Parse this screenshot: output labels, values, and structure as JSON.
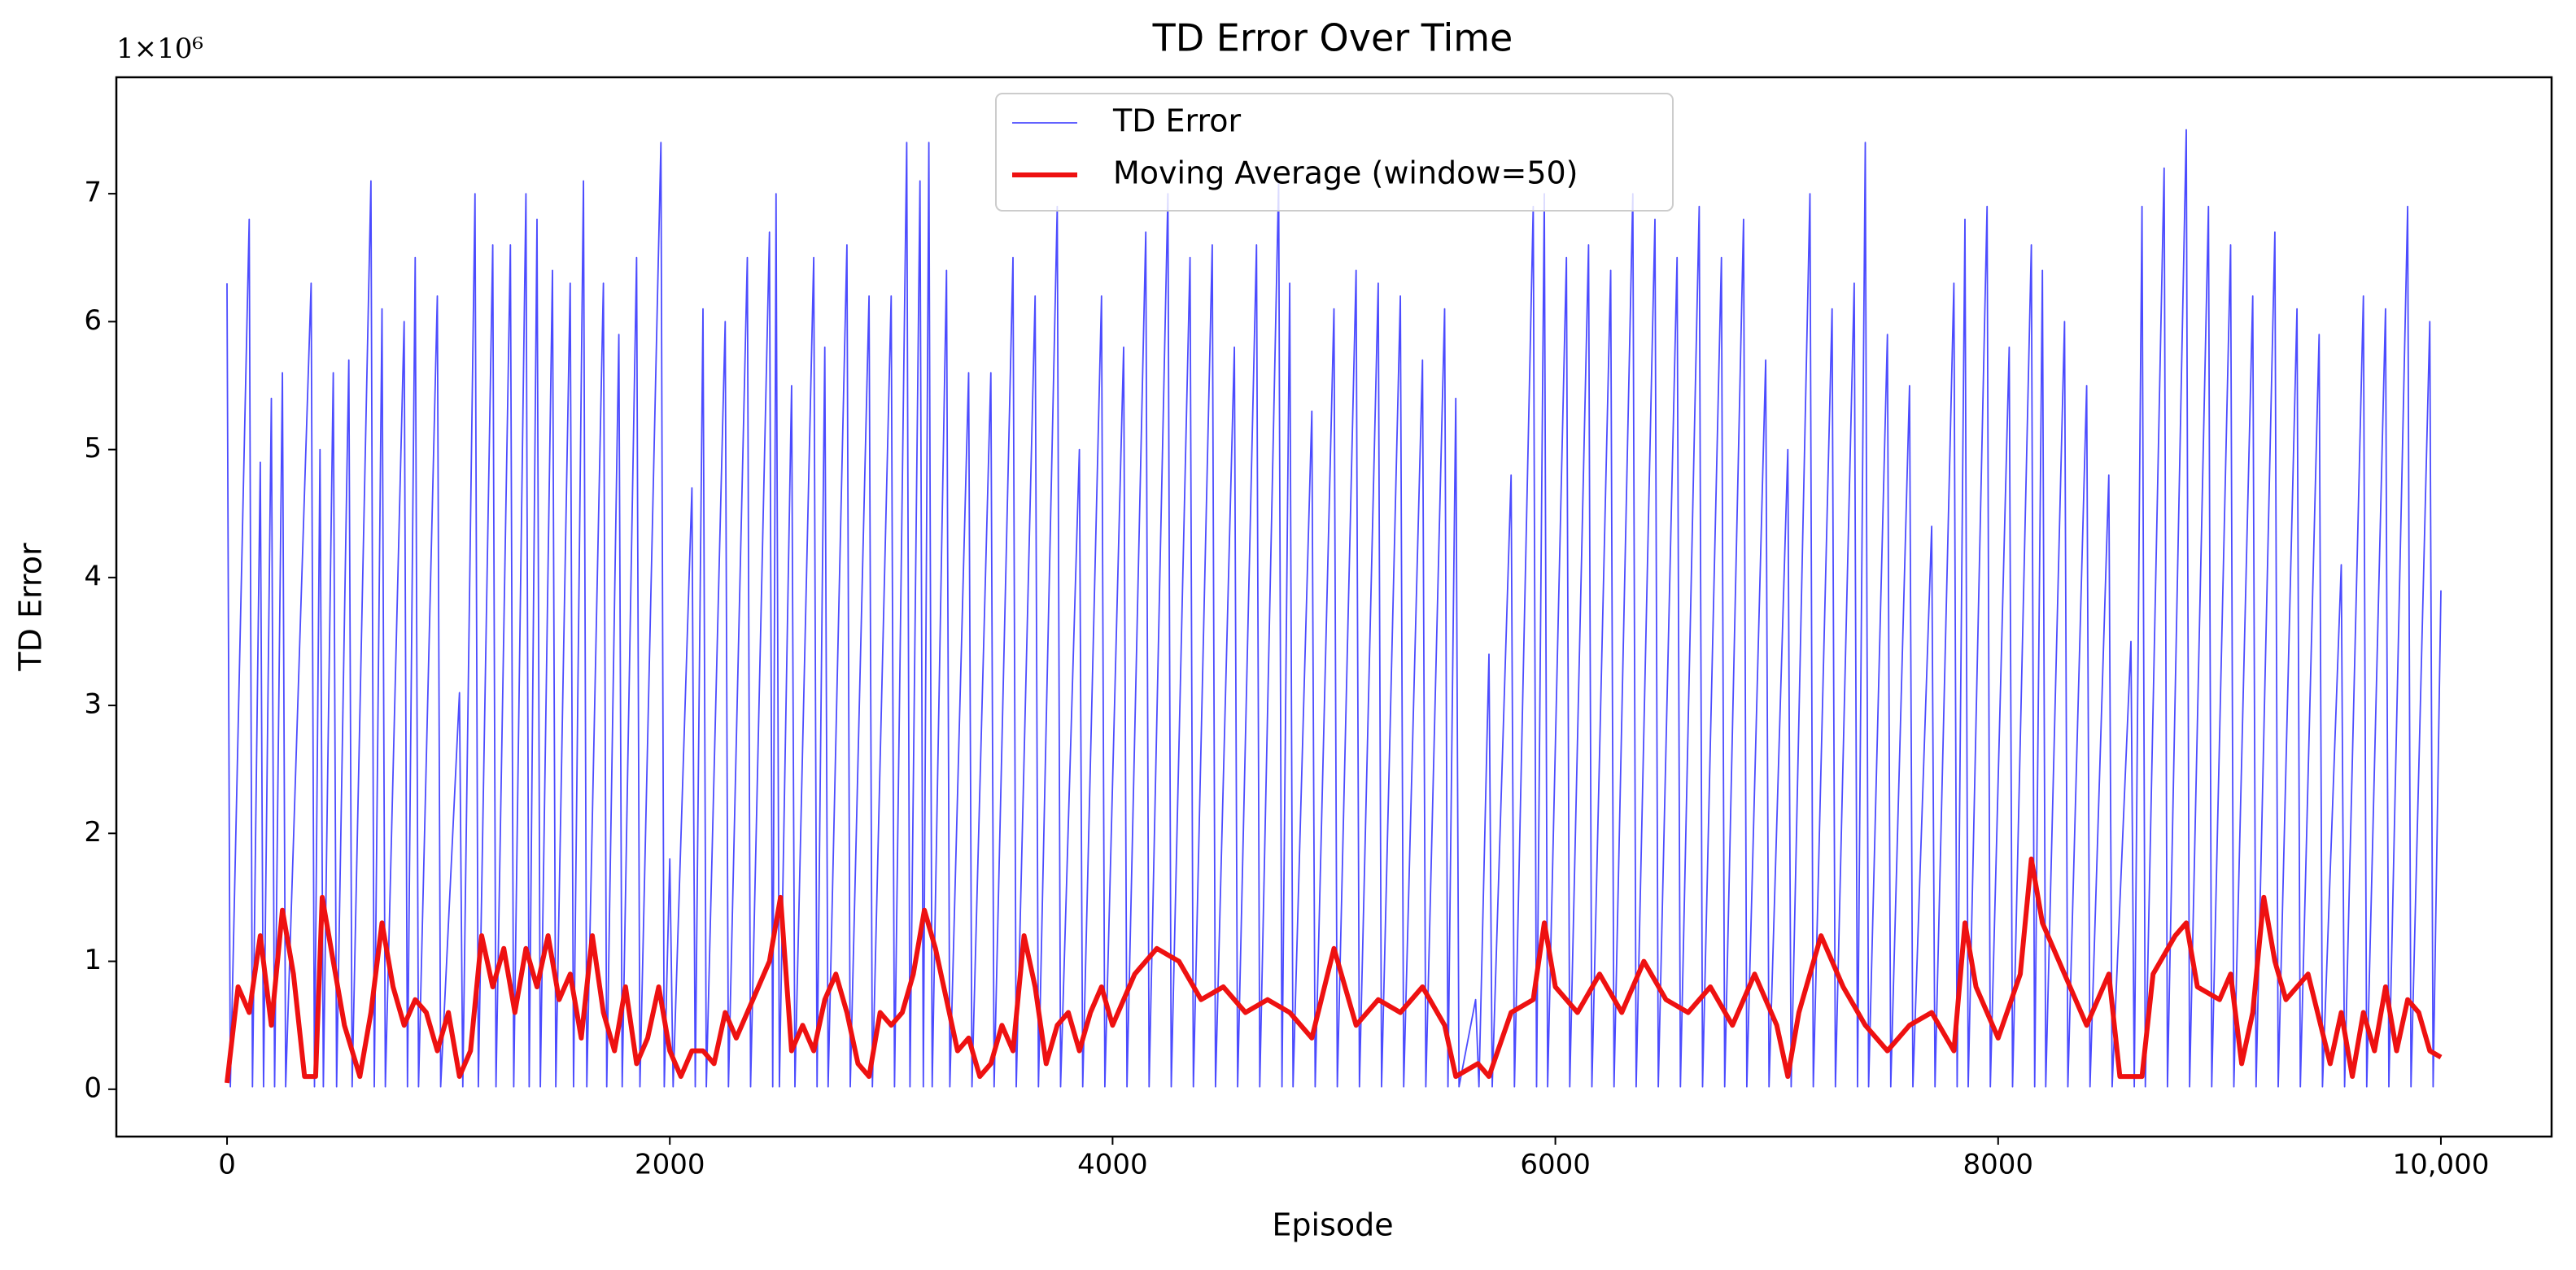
{
  "chart_data": {
    "type": "line",
    "title": "TD Error Over Time",
    "xlabel": "Episode",
    "ylabel": "TD Error",
    "y_offset_label": "1×10⁶",
    "xlim": [
      -500,
      10500
    ],
    "ylim": [
      -0.37,
      7.91
    ],
    "xticks": [
      0,
      2000,
      4000,
      6000,
      8000,
      {
        "value": 10000,
        "label": "10,000"
      }
    ],
    "yticks": [
      0,
      1,
      2,
      3,
      4,
      5,
      6,
      7
    ],
    "legend": "upper center",
    "series": [
      {
        "name": "TD Error",
        "color": "#4b4bff",
        "width": 1.5,
        "x": [
          0,
          15,
          100,
          115,
          150,
          165,
          200,
          215,
          250,
          265,
          380,
          395,
          420,
          435,
          480,
          495,
          550,
          565,
          650,
          665,
          700,
          715,
          800,
          815,
          850,
          865,
          950,
          965,
          1050,
          1065,
          1120,
          1135,
          1200,
          1215,
          1280,
          1295,
          1350,
          1365,
          1400,
          1415,
          1470,
          1485,
          1550,
          1565,
          1610,
          1625,
          1700,
          1715,
          1770,
          1785,
          1850,
          1865,
          1960,
          1975,
          2000,
          2015,
          2100,
          2115,
          2150,
          2165,
          2250,
          2265,
          2350,
          2365,
          2450,
          2465,
          2480,
          2495,
          2550,
          2565,
          2650,
          2665,
          2700,
          2715,
          2800,
          2815,
          2900,
          2915,
          3000,
          3015,
          3070,
          3085,
          3130,
          3145,
          3170,
          3185,
          3250,
          3265,
          3350,
          3365,
          3450,
          3465,
          3550,
          3565,
          3650,
          3665,
          3750,
          3765,
          3850,
          3865,
          3950,
          3965,
          4050,
          4065,
          4150,
          4165,
          4250,
          4265,
          4350,
          4365,
          4450,
          4465,
          4550,
          4565,
          4650,
          4665,
          4750,
          4765,
          4800,
          4815,
          4900,
          4915,
          5000,
          5015,
          5100,
          5115,
          5200,
          5215,
          5300,
          5315,
          5400,
          5415,
          5500,
          5515,
          5550,
          5565,
          5640,
          5655,
          5700,
          5715,
          5800,
          5815,
          5900,
          5915,
          5950,
          5965,
          6050,
          6065,
          6150,
          6165,
          6250,
          6265,
          6350,
          6365,
          6450,
          6465,
          6550,
          6565,
          6650,
          6665,
          6750,
          6765,
          6850,
          6865,
          6950,
          6965,
          7050,
          7065,
          7150,
          7165,
          7250,
          7265,
          7350,
          7365,
          7400,
          7415,
          7500,
          7515,
          7600,
          7615,
          7700,
          7715,
          7800,
          7815,
          7850,
          7865,
          7950,
          7965,
          8050,
          8065,
          8150,
          8165,
          8200,
          8215,
          8300,
          8315,
          8400,
          8415,
          8500,
          8515,
          8600,
          8615,
          8650,
          8665,
          8750,
          8765,
          8850,
          8865,
          8950,
          8965,
          9050,
          9065,
          9150,
          9165,
          9250,
          9265,
          9350,
          9365,
          9450,
          9465,
          9550,
          9565,
          9650,
          9665,
          9750,
          9765,
          9850,
          9865,
          9950,
          9965,
          10000
        ],
        "values": [
          6.3,
          0.02,
          6.8,
          0.02,
          4.9,
          0.02,
          5.4,
          0.02,
          5.6,
          0.02,
          6.3,
          0.02,
          5.0,
          0.02,
          5.6,
          0.02,
          5.7,
          0.02,
          7.1,
          0.02,
          6.1,
          0.02,
          6.0,
          0.02,
          6.5,
          0.02,
          6.2,
          0.02,
          3.1,
          0.02,
          7.0,
          0.02,
          6.6,
          0.02,
          6.6,
          0.02,
          7.0,
          0.02,
          6.8,
          0.02,
          6.4,
          0.02,
          6.3,
          0.02,
          7.1,
          0.02,
          6.3,
          0.02,
          5.9,
          0.02,
          6.5,
          0.02,
          7.4,
          0.02,
          1.8,
          0.02,
          4.7,
          0.02,
          6.1,
          0.02,
          6.0,
          0.02,
          6.5,
          0.02,
          6.7,
          0.02,
          7.0,
          0.02,
          5.5,
          0.02,
          6.5,
          0.02,
          5.8,
          0.02,
          6.6,
          0.02,
          6.2,
          0.02,
          6.2,
          0.02,
          7.4,
          0.02,
          7.1,
          0.02,
          7.4,
          0.02,
          6.4,
          0.02,
          5.6,
          0.02,
          5.6,
          0.02,
          6.5,
          0.02,
          6.2,
          0.02,
          6.9,
          0.02,
          5.0,
          0.02,
          6.2,
          0.02,
          5.8,
          0.02,
          6.7,
          0.02,
          7.0,
          0.02,
          6.5,
          0.02,
          6.6,
          0.02,
          5.8,
          0.02,
          6.6,
          0.02,
          7.1,
          0.02,
          6.3,
          0.02,
          5.3,
          0.02,
          6.1,
          0.02,
          6.4,
          0.02,
          6.3,
          0.02,
          6.2,
          0.02,
          5.7,
          0.02,
          6.1,
          0.02,
          5.4,
          0.02,
          0.7,
          0.02,
          3.4,
          0.02,
          4.8,
          0.02,
          6.9,
          0.02,
          7.0,
          0.02,
          6.5,
          0.02,
          6.6,
          0.02,
          6.4,
          0.02,
          7.0,
          0.02,
          6.8,
          0.02,
          6.5,
          0.02,
          6.9,
          0.02,
          6.5,
          0.02,
          6.8,
          0.02,
          5.7,
          0.02,
          5.0,
          0.02,
          7.0,
          0.02,
          6.1,
          0.02,
          6.3,
          0.02,
          7.4,
          0.02,
          5.9,
          0.02,
          5.5,
          0.02,
          4.4,
          0.02,
          6.3,
          0.02,
          6.8,
          0.02,
          6.9,
          0.02,
          5.8,
          0.02,
          6.6,
          0.02,
          6.4,
          0.02,
          6.0,
          0.02,
          5.5,
          0.02,
          4.8,
          0.02,
          3.5,
          0.02,
          6.9,
          0.02,
          7.2,
          0.02,
          7.5,
          0.02,
          6.9,
          0.02,
          6.6,
          0.02,
          6.2,
          0.02,
          6.7,
          0.02,
          6.1,
          0.02,
          5.9,
          0.02,
          4.1,
          0.02,
          6.2,
          0.02,
          6.1,
          0.02,
          6.9,
          0.02,
          6.0,
          0.02,
          3.9
        ]
      },
      {
        "name": "Moving Average (window=50)",
        "color": "#ee1111",
        "width": 5,
        "x": [
          0,
          50,
          100,
          150,
          200,
          250,
          300,
          350,
          400,
          430,
          480,
          530,
          600,
          650,
          700,
          750,
          800,
          850,
          900,
          950,
          1000,
          1050,
          1100,
          1150,
          1200,
          1250,
          1300,
          1350,
          1400,
          1450,
          1500,
          1550,
          1600,
          1650,
          1700,
          1750,
          1800,
          1850,
          1900,
          1950,
          2000,
          2050,
          2100,
          2150,
          2200,
          2250,
          2300,
          2350,
          2400,
          2450,
          2500,
          2550,
          2600,
          2650,
          2700,
          2750,
          2800,
          2850,
          2900,
          2950,
          3000,
          3050,
          3100,
          3150,
          3200,
          3250,
          3300,
          3350,
          3400,
          3450,
          3500,
          3550,
          3600,
          3650,
          3700,
          3750,
          3800,
          3850,
          3900,
          3950,
          4000,
          4100,
          4200,
          4300,
          4400,
          4500,
          4600,
          4700,
          4800,
          4900,
          5000,
          5100,
          5200,
          5300,
          5400,
          5500,
          5550,
          5650,
          5700,
          5800,
          5900,
          5950,
          6000,
          6100,
          6200,
          6300,
          6400,
          6500,
          6600,
          6700,
          6800,
          6900,
          7000,
          7050,
          7100,
          7200,
          7300,
          7400,
          7500,
          7600,
          7700,
          7800,
          7850,
          7900,
          8000,
          8100,
          8150,
          8200,
          8300,
          8400,
          8500,
          8550,
          8650,
          8700,
          8800,
          8850,
          8900,
          9000,
          9050,
          9100,
          9150,
          9200,
          9250,
          9300,
          9400,
          9500,
          9550,
          9600,
          9650,
          9700,
          9750,
          9800,
          9850,
          9900,
          9950,
          10000
        ],
        "values": [
          0.05,
          0.8,
          0.6,
          1.2,
          0.5,
          1.4,
          0.9,
          0.1,
          0.1,
          1.5,
          1.0,
          0.5,
          0.1,
          0.6,
          1.3,
          0.8,
          0.5,
          0.7,
          0.6,
          0.3,
          0.6,
          0.1,
          0.3,
          1.2,
          0.8,
          1.1,
          0.6,
          1.1,
          0.8,
          1.2,
          0.7,
          0.9,
          0.4,
          1.2,
          0.6,
          0.3,
          0.8,
          0.2,
          0.4,
          0.8,
          0.3,
          0.1,
          0.3,
          0.3,
          0.2,
          0.6,
          0.4,
          0.6,
          0.8,
          1.0,
          1.5,
          0.3,
          0.5,
          0.3,
          0.7,
          0.9,
          0.6,
          0.2,
          0.1,
          0.6,
          0.5,
          0.6,
          0.9,
          1.4,
          1.1,
          0.7,
          0.3,
          0.4,
          0.1,
          0.2,
          0.5,
          0.3,
          1.2,
          0.8,
          0.2,
          0.5,
          0.6,
          0.3,
          0.6,
          0.8,
          0.5,
          0.9,
          1.1,
          1.0,
          0.7,
          0.8,
          0.6,
          0.7,
          0.6,
          0.4,
          1.1,
          0.5,
          0.7,
          0.6,
          0.8,
          0.5,
          0.1,
          0.2,
          0.1,
          0.6,
          0.7,
          1.3,
          0.8,
          0.6,
          0.9,
          0.6,
          1.0,
          0.7,
          0.6,
          0.8,
          0.5,
          0.9,
          0.5,
          0.1,
          0.6,
          1.2,
          0.8,
          0.5,
          0.3,
          0.5,
          0.6,
          0.3,
          1.3,
          0.8,
          0.4,
          0.9,
          1.8,
          1.3,
          0.9,
          0.5,
          0.9,
          0.1,
          0.1,
          0.9,
          1.2,
          1.3,
          0.8,
          0.7,
          0.9,
          0.2,
          0.6,
          1.5,
          1.0,
          0.7,
          0.9,
          0.2,
          0.6,
          0.1,
          0.6,
          0.3,
          0.8,
          0.3,
          0.7,
          0.6,
          0.3,
          0.25
        ]
      }
    ]
  }
}
